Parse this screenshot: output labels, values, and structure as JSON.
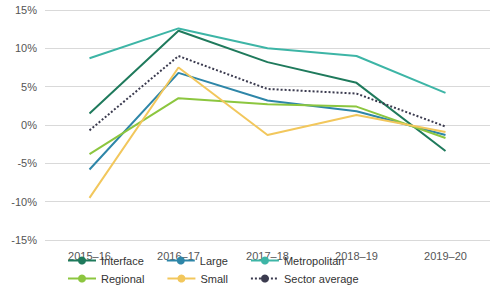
{
  "chart_data": {
    "type": "line",
    "categories": [
      "2015–16",
      "2016–17",
      "2017–18",
      "2018–19",
      "2019–20"
    ],
    "series": [
      {
        "name": "Interface",
        "color": "#1f7a5c",
        "line_style": "solid",
        "values": [
          1.5,
          12.3,
          8.2,
          5.5,
          -3.4
        ]
      },
      {
        "name": "Large",
        "color": "#2e86a8",
        "line_style": "solid",
        "values": [
          -5.8,
          6.8,
          3.2,
          1.8,
          -1.3
        ]
      },
      {
        "name": "Metropolitan",
        "color": "#3db5a6",
        "line_style": "solid",
        "values": [
          8.7,
          12.6,
          10.0,
          9.0,
          4.2
        ]
      },
      {
        "name": "Regional",
        "color": "#8cc63f",
        "line_style": "solid",
        "values": [
          -3.8,
          3.5,
          2.7,
          2.4,
          -1.7
        ]
      },
      {
        "name": "Small",
        "color": "#f2c75c",
        "line_style": "solid",
        "values": [
          -9.5,
          7.5,
          -1.3,
          1.3,
          -0.9
        ]
      },
      {
        "name": "Sector average",
        "color": "#3b3b4f",
        "line_style": "dotted",
        "values": [
          -0.7,
          9.0,
          4.7,
          4.1,
          -0.2
        ]
      }
    ],
    "ylim": [
      -15,
      15
    ],
    "yticks": [
      {
        "value": -15,
        "label": "-15%"
      },
      {
        "value": -10,
        "label": "-10%"
      },
      {
        "value": -5,
        "label": "-5%"
      },
      {
        "value": 0,
        "label": "0%"
      },
      {
        "value": 5,
        "label": "5%"
      },
      {
        "value": 10,
        "label": "10%"
      },
      {
        "value": 15,
        "label": "15%"
      }
    ],
    "grid": true,
    "legend": "bottom"
  }
}
